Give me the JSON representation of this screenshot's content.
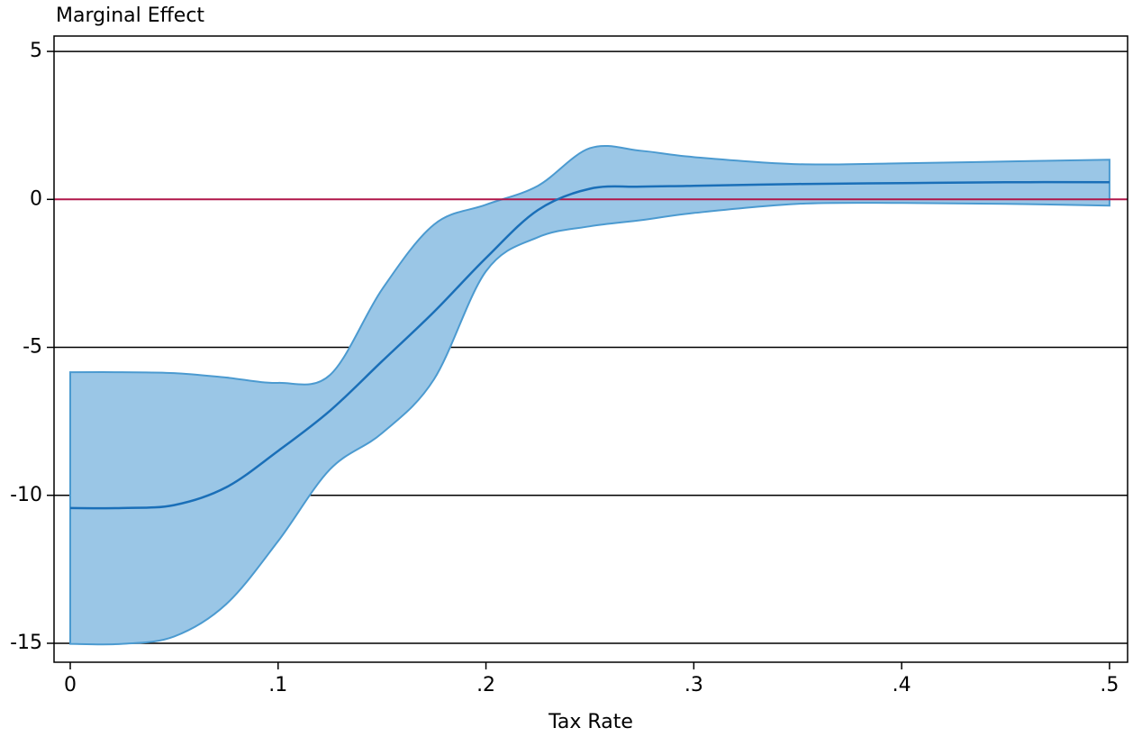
{
  "chart_data": {
    "type": "line-band",
    "y_axis_title": "Marginal Effect",
    "x_axis_title": "Tax Rate",
    "x": [
      0,
      0.025,
      0.05,
      0.075,
      0.1,
      0.125,
      0.15,
      0.175,
      0.2,
      0.225,
      0.25,
      0.275,
      0.3,
      0.35,
      0.4,
      0.45,
      0.5
    ],
    "line": {
      "color": "#1a6fb8",
      "values": [
        -10.43,
        -10.43,
        -10.33,
        -9.73,
        -8.5,
        -7.14,
        -5.47,
        -3.8,
        -1.98,
        -0.36,
        0.36,
        0.43,
        0.46,
        0.52,
        0.55,
        0.58,
        0.58
      ]
    },
    "band": {
      "color": "#9ac6e6",
      "edge_color": "#4b9ad0",
      "upper": [
        -5.84,
        -5.84,
        -5.87,
        -6.02,
        -6.2,
        -5.93,
        -3.04,
        -0.85,
        -0.18,
        0.46,
        1.73,
        1.64,
        1.43,
        1.19,
        1.22,
        1.28,
        1.34
      ],
      "lower": [
        -15.02,
        -15.02,
        -14.77,
        -13.68,
        -11.55,
        -9.12,
        -7.9,
        -6.08,
        -2.43,
        -1.28,
        -0.91,
        -0.7,
        -0.46,
        -0.15,
        -0.12,
        -0.15,
        -0.21
      ]
    },
    "reference_line": {
      "value": 0,
      "color": "#b0174a"
    },
    "xlim": [
      -0.0078,
      0.5087
    ],
    "ylim": [
      -15.64,
      5.52
    ],
    "xticks": [
      0,
      {
        "value": 0.1,
        "label": ".1"
      },
      {
        "value": 0.2,
        "label": ".2"
      },
      {
        "value": 0.3,
        "label": ".3"
      },
      {
        "value": 0.4,
        "label": ".4"
      },
      {
        "value": 0.5,
        "label": ".5"
      }
    ],
    "yticks": [
      5,
      0,
      -5,
      -10,
      -15
    ],
    "grid": true
  }
}
